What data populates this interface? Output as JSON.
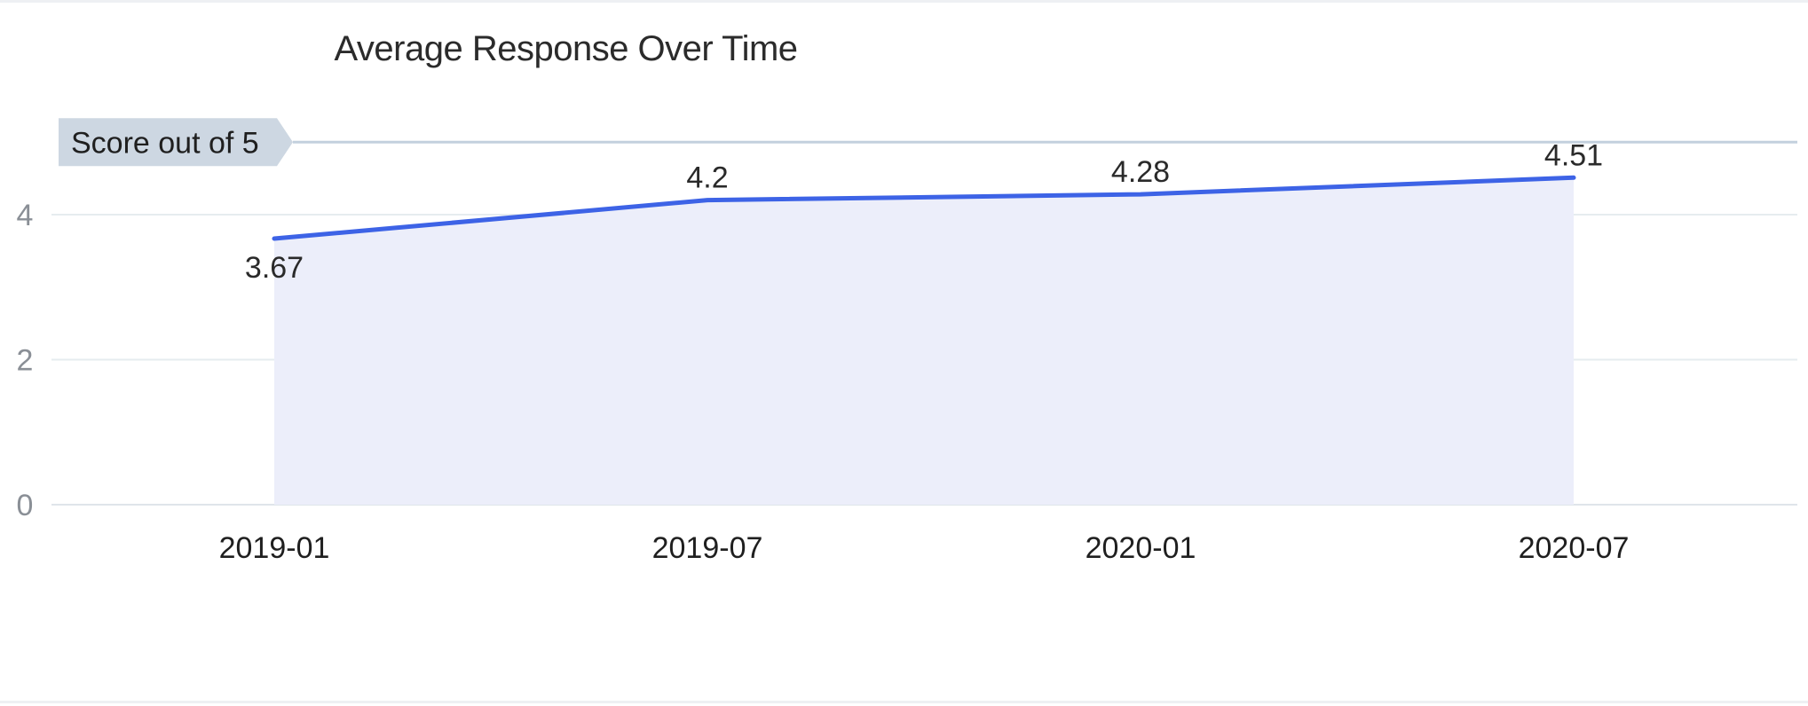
{
  "chart_data": {
    "type": "area",
    "title": "Average Response Over Time",
    "categories": [
      "2019-01",
      "2019-07",
      "2020-01",
      "2020-07"
    ],
    "series": [
      {
        "values": [
          3.67,
          4.2,
          4.28,
          4.51
        ],
        "color": "#3d63e6",
        "fill": "#eceefa"
      }
    ],
    "data_labels": [
      "3.67",
      "4.2",
      "4.28",
      "4.51"
    ],
    "y_ticks": [
      0,
      2,
      4
    ],
    "ylim": [
      0,
      5
    ],
    "grid": true,
    "reference_line": {
      "value": 5,
      "label": "Score out of 5",
      "color": "#c3d0de"
    },
    "grid_color": "#e6ecef",
    "axis_color": "#dfe5ea"
  }
}
